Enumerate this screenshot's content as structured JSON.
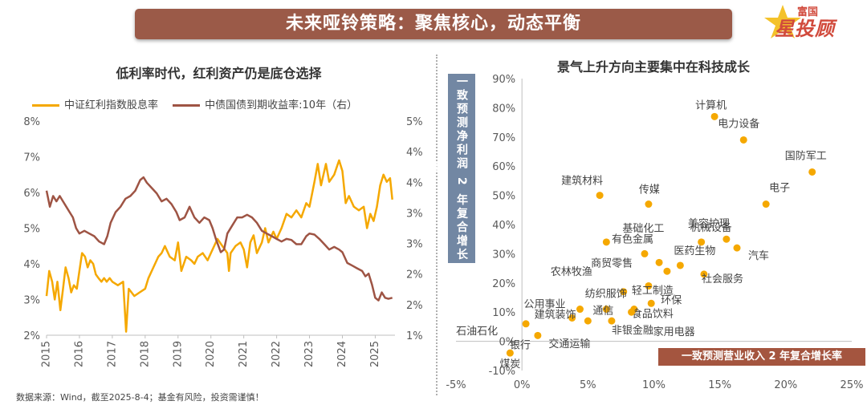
{
  "banner_title": "未来哑铃策略：聚焦核心，动态平衡",
  "logo": {
    "small": "富国",
    "big": "星投顾"
  },
  "footnote": "数据来源：Wind，截至2025-8-4；基金有风险，投资需谨慎！",
  "colors": {
    "banner": "#9b5a48",
    "gold": "#f5a800",
    "brown": "#9e5444",
    "scatter": "#f5a800",
    "xlabel_box": "#a4553f",
    "ylabel_box": "#7287a3"
  },
  "chart_data": [
    {
      "type": "line",
      "title": "低利率时代，红利资产仍是底仓选择",
      "legend_position": "top",
      "x_ticks": [
        "2015",
        "2016",
        "2017",
        "2018",
        "2019",
        "2020",
        "2021",
        "2022",
        "2023",
        "2024",
        "2025"
      ],
      "xlim": [
        2015.0,
        2025.6
      ],
      "left_axis": {
        "ylim": [
          2,
          8
        ],
        "ticks": [
          "2%",
          "3%",
          "4%",
          "5%",
          "6%",
          "7%",
          "8%"
        ]
      },
      "right_axis": {
        "ylim": [
          1,
          5
        ],
        "ticks": [
          "1%",
          "2%",
          "2%",
          "3%",
          "3%",
          "4%",
          "4%",
          "5%"
        ]
      },
      "series": [
        {
          "name": "中证红利指数股息率",
          "axis": "left",
          "color": "#f5a800",
          "points": [
            [
              2015.0,
              3.1
            ],
            [
              2015.08,
              3.8
            ],
            [
              2015.17,
              3.5
            ],
            [
              2015.25,
              3.0
            ],
            [
              2015.33,
              3.5
            ],
            [
              2015.42,
              2.7
            ],
            [
              2015.5,
              3.3
            ],
            [
              2015.58,
              3.9
            ],
            [
              2015.67,
              3.6
            ],
            [
              2015.75,
              3.2
            ],
            [
              2015.83,
              3.4
            ],
            [
              2015.92,
              3.3
            ],
            [
              2016.0,
              3.8
            ],
            [
              2016.08,
              4.3
            ],
            [
              2016.17,
              4.2
            ],
            [
              2016.25,
              3.9
            ],
            [
              2016.33,
              4.1
            ],
            [
              2016.42,
              4.0
            ],
            [
              2016.5,
              3.7
            ],
            [
              2016.58,
              3.6
            ],
            [
              2016.67,
              3.5
            ],
            [
              2016.75,
              3.6
            ],
            [
              2016.83,
              3.5
            ],
            [
              2016.92,
              3.6
            ],
            [
              2017.0,
              3.5
            ],
            [
              2017.17,
              3.4
            ],
            [
              2017.33,
              3.5
            ],
            [
              2017.42,
              2.1
            ],
            [
              2017.5,
              3.3
            ],
            [
              2017.67,
              3.1
            ],
            [
              2017.83,
              3.2
            ],
            [
              2018.0,
              3.3
            ],
            [
              2018.1,
              3.6
            ],
            [
              2018.25,
              3.9
            ],
            [
              2018.4,
              4.2
            ],
            [
              2018.5,
              4.3
            ],
            [
              2018.6,
              4.5
            ],
            [
              2018.75,
              4.2
            ],
            [
              2018.9,
              4.1
            ],
            [
              2019.0,
              4.6
            ],
            [
              2019.1,
              3.8
            ],
            [
              2019.25,
              4.2
            ],
            [
              2019.4,
              4.1
            ],
            [
              2019.5,
              4.0
            ],
            [
              2019.6,
              4.2
            ],
            [
              2019.75,
              4.3
            ],
            [
              2019.9,
              4.1
            ],
            [
              2020.0,
              4.3
            ],
            [
              2020.2,
              4.7
            ],
            [
              2020.35,
              4.5
            ],
            [
              2020.5,
              4.3
            ],
            [
              2020.55,
              3.8
            ],
            [
              2020.6,
              4.3
            ],
            [
              2020.75,
              4.5
            ],
            [
              2020.9,
              4.6
            ],
            [
              2021.0,
              4.4
            ],
            [
              2021.1,
              3.9
            ],
            [
              2021.2,
              4.6
            ],
            [
              2021.3,
              4.8
            ],
            [
              2021.4,
              4.3
            ],
            [
              2021.55,
              4.6
            ],
            [
              2021.65,
              5.0
            ],
            [
              2021.75,
              4.6
            ],
            [
              2021.9,
              4.9
            ],
            [
              2022.0,
              4.7
            ],
            [
              2022.15,
              5.0
            ],
            [
              2022.3,
              5.4
            ],
            [
              2022.45,
              5.3
            ],
            [
              2022.6,
              5.5
            ],
            [
              2022.75,
              5.3
            ],
            [
              2022.9,
              5.7
            ],
            [
              2023.0,
              5.6
            ],
            [
              2023.15,
              6.3
            ],
            [
              2023.25,
              6.8
            ],
            [
              2023.35,
              6.2
            ],
            [
              2023.5,
              6.8
            ],
            [
              2023.6,
              6.3
            ],
            [
              2023.75,
              6.5
            ],
            [
              2023.9,
              6.9
            ],
            [
              2024.0,
              6.6
            ],
            [
              2024.1,
              5.7
            ],
            [
              2024.2,
              5.9
            ],
            [
              2024.35,
              5.6
            ],
            [
              2024.5,
              5.5
            ],
            [
              2024.65,
              5.6
            ],
            [
              2024.75,
              5.0
            ],
            [
              2024.85,
              5.4
            ],
            [
              2024.95,
              5.2
            ],
            [
              2025.05,
              5.6
            ],
            [
              2025.15,
              6.2
            ],
            [
              2025.25,
              6.5
            ],
            [
              2025.35,
              6.3
            ],
            [
              2025.45,
              6.4
            ],
            [
              2025.52,
              5.8
            ]
          ]
        },
        {
          "name": "中债国债到期收益率:10年（右）",
          "axis": "right",
          "color": "#9e5444",
          "points": [
            [
              2015.0,
              3.7
            ],
            [
              2015.1,
              3.4
            ],
            [
              2015.2,
              3.6
            ],
            [
              2015.3,
              3.5
            ],
            [
              2015.4,
              3.6
            ],
            [
              2015.5,
              3.5
            ],
            [
              2015.6,
              3.4
            ],
            [
              2015.7,
              3.3
            ],
            [
              2015.8,
              3.2
            ],
            [
              2015.9,
              3.0
            ],
            [
              2016.0,
              2.9
            ],
            [
              2016.15,
              2.95
            ],
            [
              2016.3,
              2.9
            ],
            [
              2016.45,
              2.85
            ],
            [
              2016.6,
              2.75
            ],
            [
              2016.75,
              2.7
            ],
            [
              2016.85,
              2.85
            ],
            [
              2016.95,
              3.1
            ],
            [
              2017.1,
              3.3
            ],
            [
              2017.25,
              3.4
            ],
            [
              2017.4,
              3.55
            ],
            [
              2017.55,
              3.6
            ],
            [
              2017.7,
              3.7
            ],
            [
              2017.85,
              3.9
            ],
            [
              2017.95,
              3.95
            ],
            [
              2018.05,
              3.85
            ],
            [
              2018.2,
              3.75
            ],
            [
              2018.35,
              3.65
            ],
            [
              2018.5,
              3.5
            ],
            [
              2018.65,
              3.55
            ],
            [
              2018.8,
              3.45
            ],
            [
              2018.95,
              3.3
            ],
            [
              2019.05,
              3.15
            ],
            [
              2019.2,
              3.2
            ],
            [
              2019.35,
              3.4
            ],
            [
              2019.5,
              3.2
            ],
            [
              2019.65,
              3.1
            ],
            [
              2019.8,
              3.2
            ],
            [
              2019.95,
              3.15
            ],
            [
              2020.05,
              3.0
            ],
            [
              2020.15,
              2.8
            ],
            [
              2020.3,
              2.55
            ],
            [
              2020.4,
              2.6
            ],
            [
              2020.5,
              2.9
            ],
            [
              2020.65,
              3.05
            ],
            [
              2020.8,
              3.2
            ],
            [
              2020.95,
              3.2
            ],
            [
              2021.1,
              3.25
            ],
            [
              2021.25,
              3.2
            ],
            [
              2021.4,
              3.1
            ],
            [
              2021.55,
              2.95
            ],
            [
              2021.7,
              2.9
            ],
            [
              2021.85,
              2.85
            ],
            [
              2022.0,
              2.8
            ],
            [
              2022.15,
              2.75
            ],
            [
              2022.3,
              2.8
            ],
            [
              2022.45,
              2.78
            ],
            [
              2022.6,
              2.7
            ],
            [
              2022.75,
              2.7
            ],
            [
              2022.9,
              2.85
            ],
            [
              2023.0,
              2.9
            ],
            [
              2023.15,
              2.88
            ],
            [
              2023.3,
              2.8
            ],
            [
              2023.45,
              2.7
            ],
            [
              2023.6,
              2.6
            ],
            [
              2023.75,
              2.65
            ],
            [
              2023.9,
              2.6
            ],
            [
              2024.0,
              2.55
            ],
            [
              2024.15,
              2.35
            ],
            [
              2024.3,
              2.3
            ],
            [
              2024.45,
              2.25
            ],
            [
              2024.6,
              2.2
            ],
            [
              2024.7,
              2.1
            ],
            [
              2024.8,
              2.15
            ],
            [
              2024.9,
              1.95
            ],
            [
              2025.0,
              1.7
            ],
            [
              2025.1,
              1.65
            ],
            [
              2025.2,
              1.8
            ],
            [
              2025.3,
              1.7
            ],
            [
              2025.4,
              1.68
            ],
            [
              2025.52,
              1.7
            ]
          ]
        }
      ]
    },
    {
      "type": "scatter",
      "title": "景气上升方向主要集中在科技成长",
      "xlabel": "一致预测营业收入 2 年复合增长率",
      "ylabel": "一致预测净利润 2 年复合增长率",
      "xlim": [
        -5,
        25
      ],
      "ylim": [
        -10,
        90
      ],
      "x_ticks": [
        "-5%",
        "0%",
        "5%",
        "10%",
        "15%",
        "20%",
        "25%"
      ],
      "y_ticks": [
        "-10%",
        "0%",
        "10%",
        "20%",
        "30%",
        "40%",
        "50%",
        "60%",
        "70%",
        "80%",
        "90%"
      ],
      "points": [
        {
          "label": "计算机",
          "x": 14.6,
          "y": 77
        },
        {
          "label": "电力设备",
          "x": 16.8,
          "y": 69
        },
        {
          "label": "国防军工",
          "x": 22.0,
          "y": 58
        },
        {
          "label": "电子",
          "x": 18.5,
          "y": 47
        },
        {
          "label": "建筑材料",
          "x": 5.9,
          "y": 50
        },
        {
          "label": "传媒",
          "x": 9.6,
          "y": 47
        },
        {
          "label": "美容护理",
          "x": 15.5,
          "y": 35
        },
        {
          "label": "基础化工",
          "x": 6.4,
          "y": 34
        },
        {
          "label": "机械设备",
          "x": 13.6,
          "y": 34
        },
        {
          "label": "汽车",
          "x": 16.3,
          "y": 32
        },
        {
          "label": "有色金属",
          "x": 9.3,
          "y": 30
        },
        {
          "label": "医药生物",
          "x": 12.0,
          "y": 26
        },
        {
          "label": "商贸零售",
          "x": 10.4,
          "y": 27
        },
        {
          "label": "社会服务",
          "x": 13.8,
          "y": 23
        },
        {
          "label": "农林牧渔",
          "x": 11.0,
          "y": 24
        },
        {
          "label": "轻工制造",
          "x": 9.6,
          "y": 19
        },
        {
          "label": "纺织服饰",
          "x": 7.7,
          "y": 17
        },
        {
          "label": "环保",
          "x": 9.8,
          "y": 13
        },
        {
          "label": "公用事业",
          "x": 4.4,
          "y": 11
        },
        {
          "label": "通信",
          "x": 6.4,
          "y": 11
        },
        {
          "label": "食品饮料",
          "x": 8.5,
          "y": 11
        },
        {
          "label": "建筑装饰",
          "x": 3.8,
          "y": 8
        },
        {
          "label": "石油石化",
          "x": 0.3,
          "y": 6
        },
        {
          "label": "非银金融",
          "x": 6.8,
          "y": 7
        },
        {
          "label": "家用电器",
          "x": 8.3,
          "y": 10
        },
        {
          "label": "交通运输",
          "x": 5.0,
          "y": 7
        },
        {
          "label": "银行",
          "x": 1.2,
          "y": 2
        },
        {
          "label": "煤炭",
          "x": -0.9,
          "y": -4
        }
      ]
    }
  ]
}
